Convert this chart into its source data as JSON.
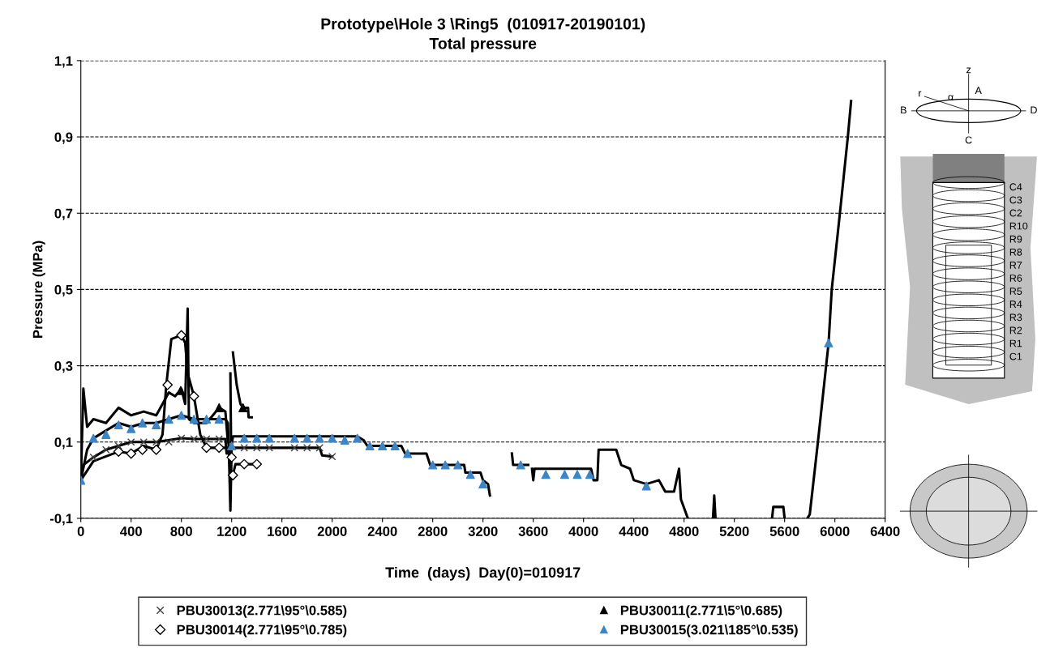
{
  "chart_data": {
    "type": "line",
    "title": "Prototype\\Hole 3 \\Ring5  (010917-20190101)",
    "subtitle": "Total pressure",
    "xlabel": "Time  (days)  Day(0)=010917",
    "ylabel": "Pressure (MPa)",
    "xlim": [
      0,
      6400
    ],
    "xticks": [
      0,
      400,
      800,
      1200,
      1600,
      2000,
      2400,
      2800,
      3200,
      3600,
      4000,
      4400,
      4800,
      5200,
      5600,
      6000,
      6400
    ],
    "ylim": [
      -0.1,
      1.1
    ],
    "yticks": [
      {
        "value": -0.1,
        "label": "-0,1"
      },
      {
        "value": 0.1,
        "label": "0,1"
      },
      {
        "value": 0.3,
        "label": "0,3"
      },
      {
        "value": 0.5,
        "label": "0,5"
      },
      {
        "value": 0.7,
        "label": "0,7"
      },
      {
        "value": 0.9,
        "label": "0,9"
      },
      {
        "value": 1.1,
        "label": "1,1"
      }
    ],
    "grid": "y",
    "line_style": "solid",
    "legend": "bottom",
    "annotations": [
      "z",
      "A",
      "B",
      "C",
      "D",
      "r",
      "α",
      "C4",
      "C3",
      "C2",
      "R10",
      "R9",
      "R8",
      "R7",
      "R6",
      "R5",
      "R4",
      "R3",
      "R2",
      "R1",
      "C1"
    ],
    "series": [
      {
        "color": "#000000",
        "x": [
          0,
          20,
          100,
          200,
          300,
          400,
          600,
          800,
          900,
          1150,
          1160,
          1200,
          1900,
          1920,
          2000
        ],
        "values": [
          0.0,
          0.04,
          0.06,
          0.08,
          0.09,
          0.1,
          0.1,
          0.11,
          0.108,
          0.108,
          0.07,
          0.085,
          0.085,
          0.065,
          0.062
        ]
      },
      {
        "color": "#000000",
        "x": [
          0,
          100,
          300,
          400,
          500,
          600,
          650,
          680,
          720,
          800,
          830,
          850,
          900,
          950,
          1000,
          1180,
          1190,
          1210,
          1230,
          1400
        ],
        "values": [
          0.0,
          0.05,
          0.075,
          0.07,
          0.09,
          0.08,
          0.12,
          0.25,
          0.37,
          0.38,
          0.36,
          0.28,
          0.22,
          0.12,
          0.085,
          0.085,
          0.0,
          0.013,
          0.042,
          0.042
        ]
      },
      {
        "color": "#000000",
        "x": [
          0,
          20,
          50,
          100,
          200,
          300,
          400,
          500,
          600,
          650,
          700,
          750,
          800,
          830,
          850,
          860,
          900,
          1000,
          1100,
          1150,
          1170,
          1180,
          1190,
          1195,
          1200,
          1210,
          1240,
          1270,
          1290,
          1330,
          1335,
          1360
        ],
        "values": [
          0.0,
          0.24,
          0.14,
          0.16,
          0.15,
          0.19,
          0.17,
          0.18,
          0.17,
          0.2,
          0.23,
          0.22,
          0.24,
          0.2,
          0.45,
          0.16,
          0.15,
          0.15,
          0.19,
          0.18,
          0.1,
          null,
          0.28,
          0.1,
          null,
          0.335,
          0.25,
          0.2,
          0.19,
          0.19,
          0.165,
          0.165
        ]
      },
      {
        "color": "#000000",
        "x": [
          0,
          50,
          100,
          200,
          300,
          400,
          500,
          600,
          700,
          800,
          900,
          1150,
          1170,
          1180,
          1190,
          1200,
          1210,
          2200,
          2250,
          2280,
          2550,
          2580,
          2750,
          2780,
          3050,
          3060,
          3180,
          3200,
          3240,
          3255,
          3340,
          3430,
          3440,
          3560,
          3575,
          3590,
          3600,
          3610,
          4060,
          4080,
          4110,
          4120,
          4260,
          4300,
          4370,
          4400,
          4500,
          4600,
          4650,
          4720,
          4760,
          4775,
          4830,
          4930,
          5030,
          5040,
          5050,
          5300,
          5500,
          5510,
          5590,
          5600,
          5700,
          5780,
          5800,
          5865,
          5950,
          5975,
          6040,
          6103,
          6129
        ],
        "values": [
          0.0,
          0.08,
          0.11,
          0.13,
          0.15,
          0.14,
          0.15,
          0.15,
          0.16,
          0.17,
          0.16,
          0.16,
          0.15,
          0.05,
          -0.08,
          0.09,
          0.115,
          0.115,
          0.105,
          0.09,
          0.09,
          0.07,
          0.07,
          0.04,
          0.04,
          0.02,
          0.02,
          0.0,
          -0.01,
          -0.04,
          null,
          0.07,
          0.04,
          0.04,
          null,
          0.03,
          0.0,
          0.03,
          0.03,
          0.0,
          0.0,
          0.08,
          0.08,
          0.04,
          0.03,
          0.0,
          -0.01,
          0.0,
          -0.03,
          -0.03,
          0.03,
          -0.05,
          -0.1,
          null,
          -0.1,
          -0.04,
          -0.1,
          null,
          -0.1,
          -0.07,
          -0.07,
          -0.1,
          null,
          -0.1,
          -0.09,
          0.1,
          0.36,
          0.5,
          0.7,
          0.9,
          0.994
        ]
      },
      {
        "type": "scatter",
        "name": "PBU30013(2.771\\95°\\0.585)",
        "marker": "cross",
        "color": "#404040",
        "x": [
          100,
          200,
          300,
          400,
          500,
          600,
          700,
          800,
          900,
          1000,
          1100,
          1300,
          1400,
          1500,
          1700,
          1800,
          1900,
          2000
        ],
        "values": [
          0.06,
          0.08,
          0.09,
          0.1,
          0.1,
          0.1,
          0.1,
          0.11,
          0.108,
          0.108,
          0.108,
          0.085,
          0.085,
          0.085,
          0.085,
          0.085,
          0.085,
          0.062
        ]
      },
      {
        "type": "scatter",
        "name": "PBU30014(2.771\\95°\\0.785)",
        "marker": "diamond",
        "color": "#000000",
        "x": [
          300,
          400,
          490,
          600,
          690,
          800,
          900,
          1000,
          1100,
          1200,
          1210,
          1300,
          1400
        ],
        "values": [
          0.075,
          0.07,
          0.08,
          0.08,
          0.25,
          0.38,
          0.22,
          0.085,
          0.085,
          0.06,
          0.013,
          0.042,
          0.042
        ]
      },
      {
        "type": "scatter",
        "name": "PBU30011(2.771\\5°\\0.685)",
        "marker": "triangle",
        "color": "#000000",
        "x": [
          795,
          1100,
          1290
        ],
        "values": [
          0.235,
          0.19,
          0.19
        ]
      },
      {
        "type": "scatter",
        "name": "PBU30015(3.021\\185°\\0.535)",
        "marker": "triangle",
        "color": "#3d85c6",
        "x": [
          0,
          100,
          200,
          300,
          400,
          490,
          600,
          700,
          800,
          900,
          1000,
          1100,
          1200,
          1300,
          1400,
          1500,
          1700,
          1800,
          1900,
          2000,
          2100,
          2200,
          2300,
          2400,
          2500,
          2600,
          2800,
          2900,
          3000,
          3100,
          3200,
          3500,
          3700,
          3850,
          3950,
          4050,
          4500,
          5950
        ],
        "values": [
          0.0,
          0.11,
          0.12,
          0.145,
          0.135,
          0.15,
          0.145,
          0.16,
          0.17,
          0.16,
          0.16,
          0.16,
          0.09,
          0.11,
          0.11,
          0.11,
          0.11,
          0.11,
          0.11,
          0.11,
          0.105,
          0.11,
          0.09,
          0.09,
          0.09,
          0.07,
          0.04,
          0.04,
          0.04,
          0.015,
          -0.01,
          0.04,
          0.015,
          0.015,
          0.015,
          0.015,
          -0.015,
          0.36
        ]
      }
    ]
  }
}
